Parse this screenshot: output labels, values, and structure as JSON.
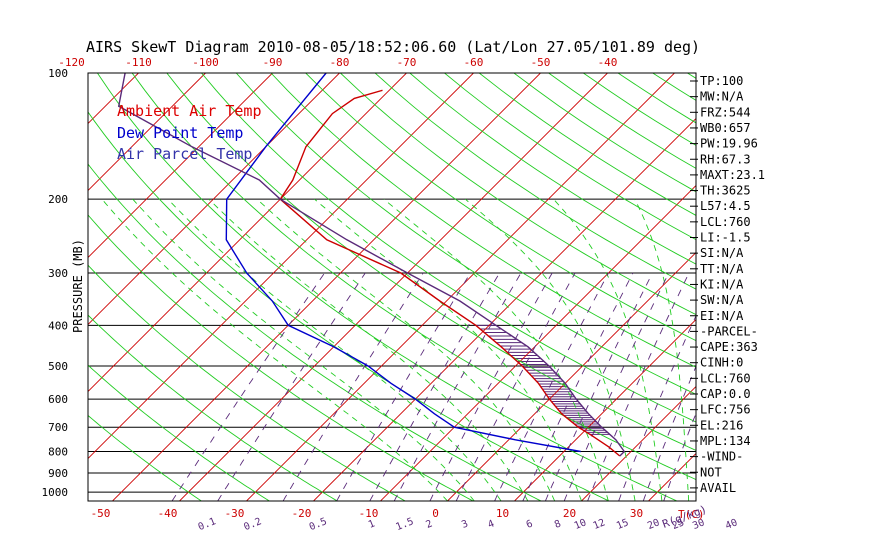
{
  "chart_data": {
    "type": "line",
    "title": "AIRS SkewT Diagram 2010-08-05/18:52:06.60 (Lat/Lon 27.05/101.89 deg)",
    "ylabel": "PRESSURE (MB)",
    "xlabel": "T(C)",
    "mixing_ratio_unit": "R(g/kg)",
    "ylim": [
      1050,
      100
    ],
    "xlim": [
      -50,
      40
    ],
    "pressure_ticks": [
      {
        "p": 100,
        "label": "100"
      },
      {
        "p": 200,
        "label": "200"
      },
      {
        "p": 300,
        "label": "300"
      },
      {
        "p": 400,
        "label": "400"
      },
      {
        "p": 500,
        "label": "500"
      },
      {
        "p": 600,
        "label": "600"
      },
      {
        "p": 700,
        "label": "700"
      },
      {
        "p": 800,
        "label": "800"
      },
      {
        "p": 900,
        "label": "900"
      },
      {
        "p": 1000,
        "label": "1000"
      }
    ],
    "bottom_temp_ticks": [
      {
        "t": -50,
        "label": "-50"
      },
      {
        "t": -40,
        "label": "-40"
      },
      {
        "t": -30,
        "label": "-30"
      },
      {
        "t": -20,
        "label": "-20"
      },
      {
        "t": -10,
        "label": "-10"
      },
      {
        "t": 0,
        "label": "0"
      },
      {
        "t": 10,
        "label": "10"
      },
      {
        "t": 20,
        "label": "20"
      },
      {
        "t": 30,
        "label": "30"
      }
    ],
    "top_temp_ticks": [
      {
        "t": -120,
        "label": "-120"
      },
      {
        "t": -110,
        "label": "-110"
      },
      {
        "t": -100,
        "label": "-100"
      },
      {
        "t": -90,
        "label": "-90"
      },
      {
        "t": -80,
        "label": "-80"
      },
      {
        "t": -70,
        "label": "-70"
      },
      {
        "t": -60,
        "label": "-60"
      },
      {
        "t": -50,
        "label": "-50"
      },
      {
        "t": -40,
        "label": "-40"
      }
    ],
    "mixing_ratios": [
      {
        "w": 0.1,
        "label": "0.1"
      },
      {
        "w": 0.2,
        "label": "0.2"
      },
      {
        "w": 0.5,
        "label": "0.5"
      },
      {
        "w": 1,
        "label": "1"
      },
      {
        "w": 1.5,
        "label": "1.5"
      },
      {
        "w": 2,
        "label": "2"
      },
      {
        "w": 3,
        "label": "3"
      },
      {
        "w": 4,
        "label": "4"
      },
      {
        "w": 6,
        "label": "6"
      },
      {
        "w": 8,
        "label": "8"
      },
      {
        "w": 10,
        "label": "10"
      },
      {
        "w": 12,
        "label": "12"
      },
      {
        "w": 15,
        "label": "15"
      },
      {
        "w": 20,
        "label": "20"
      },
      {
        "w": 25,
        "label": "25"
      },
      {
        "w": 30,
        "label": "30"
      },
      {
        "w": 40,
        "label": "40"
      }
    ],
    "legend": [
      {
        "label": "Ambient Air Temp",
        "color": "#dd0000"
      },
      {
        "label": "Dew Point Temp",
        "color": "#0000cc"
      },
      {
        "label": "Air Parcel Temp",
        "color": "#3333aa"
      }
    ],
    "series": [
      {
        "name": "Ambient Air Temp",
        "color": "#cc0000",
        "points": [
          [
            110,
            -71
          ],
          [
            115,
            -74
          ],
          [
            125,
            -75
          ],
          [
            150,
            -74
          ],
          [
            180,
            -71
          ],
          [
            200,
            -70
          ],
          [
            250,
            -57
          ],
          [
            300,
            -41
          ],
          [
            350,
            -31
          ],
          [
            400,
            -22
          ],
          [
            450,
            -15
          ],
          [
            500,
            -9
          ],
          [
            550,
            -4
          ],
          [
            600,
            0
          ],
          [
            650,
            4
          ],
          [
            700,
            8.5
          ],
          [
            730,
            11.5
          ],
          [
            780,
            16
          ],
          [
            820,
            19
          ]
        ]
      },
      {
        "name": "Dew Point Temp",
        "color": "#0000cc",
        "points": [
          [
            100,
            -82
          ],
          [
            150,
            -80
          ],
          [
            200,
            -78
          ],
          [
            250,
            -72
          ],
          [
            300,
            -64
          ],
          [
            350,
            -56
          ],
          [
            400,
            -50
          ],
          [
            450,
            -40
          ],
          [
            500,
            -32
          ],
          [
            550,
            -26
          ],
          [
            600,
            -20
          ],
          [
            650,
            -15
          ],
          [
            700,
            -10
          ],
          [
            750,
            1
          ],
          [
            800,
            12.5
          ]
        ]
      },
      {
        "name": "Air Parcel Temp",
        "color": "#5a2a7a",
        "points": [
          [
            100,
            -112
          ],
          [
            120,
            -108
          ],
          [
            150,
            -91
          ],
          [
            180,
            -76
          ],
          [
            200,
            -70
          ],
          [
            250,
            -54
          ],
          [
            300,
            -40
          ],
          [
            350,
            -28
          ],
          [
            400,
            -19
          ],
          [
            450,
            -11
          ],
          [
            500,
            -5
          ],
          [
            550,
            0
          ],
          [
            600,
            4
          ],
          [
            650,
            8
          ],
          [
            700,
            12
          ],
          [
            750,
            16
          ],
          [
            800,
            19
          ],
          [
            820,
            19
          ]
        ]
      }
    ],
    "indices": [
      "TP:100",
      "MW:N/A",
      "FRZ:544",
      "WB0:657",
      "PW:19.96",
      "RH:67.3",
      "MAXT:23.1",
      "TH:3625",
      "L57:4.5",
      "LCL:760",
      "LI:-1.5",
      "SI:N/A",
      "TT:N/A",
      "KI:N/A",
      "SW:N/A",
      "EI:N/A",
      "-PARCEL-",
      "CAPE:363",
      "CINH:0",
      "LCL:760",
      "CAP:0.0",
      "LFC:756",
      "EL:216",
      "MPL:134",
      "-WIND-",
      "NOT",
      "AVAIL"
    ]
  }
}
